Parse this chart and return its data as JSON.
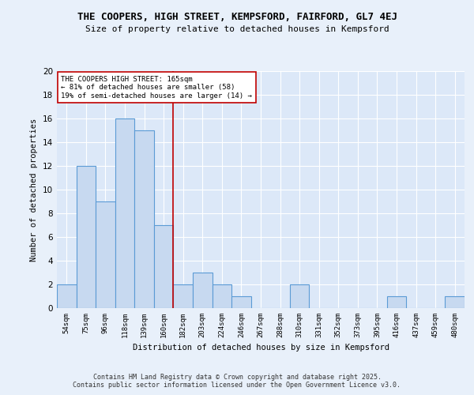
{
  "title": "THE COOPERS, HIGH STREET, KEMPSFORD, FAIRFORD, GL7 4EJ",
  "subtitle": "Size of property relative to detached houses in Kempsford",
  "xlabel": "Distribution of detached houses by size in Kempsford",
  "ylabel": "Number of detached properties",
  "bar_labels": [
    "54sqm",
    "75sqm",
    "96sqm",
    "118sqm",
    "139sqm",
    "160sqm",
    "182sqm",
    "203sqm",
    "224sqm",
    "246sqm",
    "267sqm",
    "288sqm",
    "310sqm",
    "331sqm",
    "352sqm",
    "373sqm",
    "395sqm",
    "416sqm",
    "437sqm",
    "459sqm",
    "480sqm"
  ],
  "bar_values": [
    2,
    12,
    9,
    16,
    15,
    7,
    2,
    3,
    2,
    1,
    0,
    0,
    2,
    0,
    0,
    0,
    0,
    1,
    0,
    0,
    1
  ],
  "bar_color": "#c7d9f0",
  "bar_edge_color": "#5b9bd5",
  "reference_line_x": 5.5,
  "reference_line_color": "#c00000",
  "ylim": [
    0,
    20
  ],
  "yticks": [
    0,
    2,
    4,
    6,
    8,
    10,
    12,
    14,
    16,
    18,
    20
  ],
  "annotation_text": "THE COOPERS HIGH STREET: 165sqm\n← 81% of detached houses are smaller (58)\n19% of semi-detached houses are larger (14) →",
  "annotation_box_color": "#ffffff",
  "annotation_box_edge": "#c00000",
  "background_color": "#dce8f8",
  "fig_background_color": "#e8f0fa",
  "footer_line1": "Contains HM Land Registry data © Crown copyright and database right 2025.",
  "footer_line2": "Contains public sector information licensed under the Open Government Licence v3.0."
}
